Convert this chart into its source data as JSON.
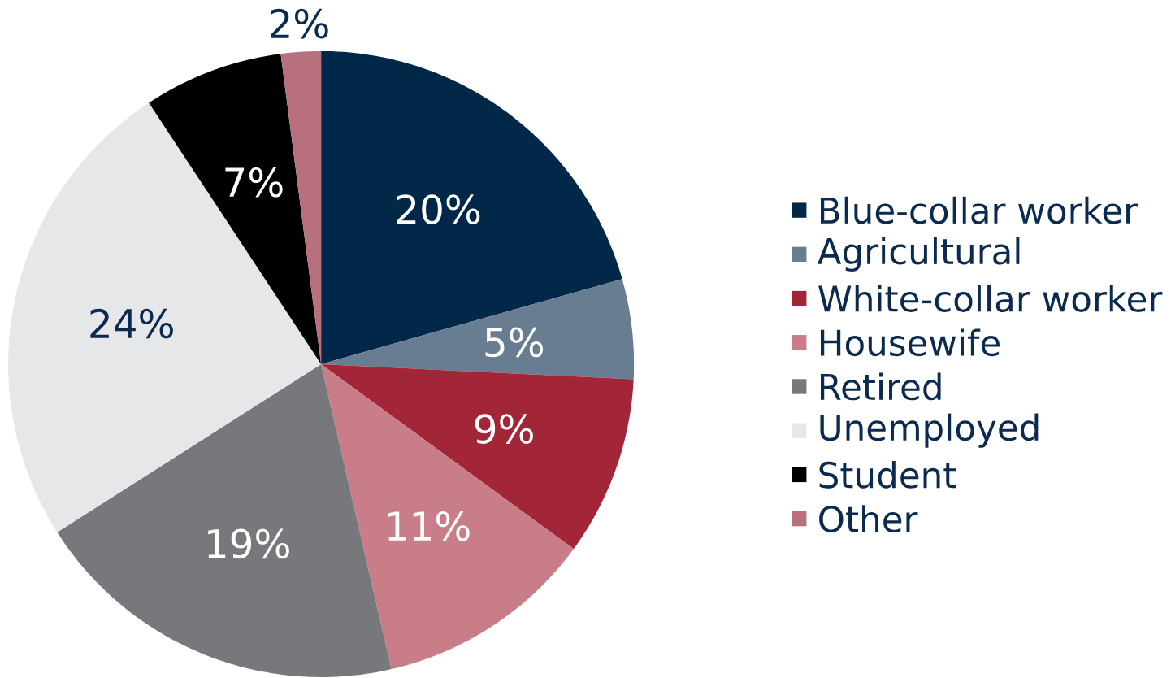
{
  "chart_data": {
    "type": "pie",
    "categories": [
      "Blue-collar worker",
      "Agricultural",
      "White-collar worker",
      "Housewife",
      "Retired",
      "Unemployed",
      "Student",
      "Other"
    ],
    "values": [
      20,
      5,
      9,
      11,
      19,
      24,
      7,
      2
    ],
    "colors": [
      "#022849",
      "#687d92",
      "#a22538",
      "#c97d88",
      "#77787c",
      "#e6e7e9",
      "#000000",
      "#b9707e"
    ],
    "value_labels": [
      "20%",
      "5%",
      "9%",
      "11%",
      "19%",
      "24%",
      "7%",
      "2%"
    ],
    "legend": "right"
  }
}
